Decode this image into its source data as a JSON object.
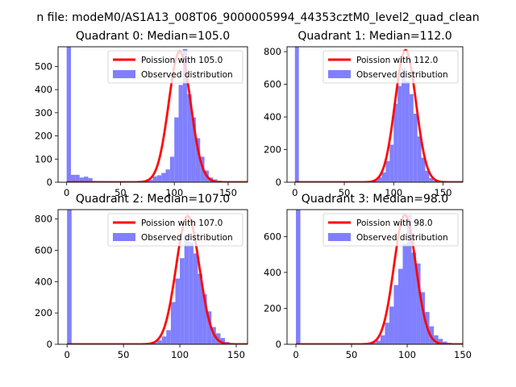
{
  "figure": {
    "suptitle": "n file: modeM0/AS1A13_008T06_9000005994_44353cztM0_level2_quad_clean"
  },
  "chart_data": [
    {
      "type": "bar",
      "title": "Quadrant 0: Median=105.0",
      "xlim": [
        -8,
        168
      ],
      "ylim": [
        0,
        585
      ],
      "xticks": [
        0,
        50,
        100,
        150
      ],
      "yticks": [
        0,
        100,
        200,
        300,
        400,
        500
      ],
      "series": [
        {
          "name": "Poission with 105.0",
          "kind": "line",
          "color": "#ff0000",
          "mean": 105.0,
          "peak": 565,
          "sigma": 10.2
        },
        {
          "name": "Observed distribution",
          "kind": "histogram",
          "color": "#8080ff",
          "bin_width": 4,
          "bins": [
            [
              0,
              585
            ],
            [
              4,
              32
            ],
            [
              8,
              32
            ],
            [
              12,
              20
            ],
            [
              16,
              24
            ],
            [
              20,
              18
            ],
            [
              24,
              5
            ],
            [
              28,
              4
            ],
            [
              32,
              4
            ],
            [
              36,
              3
            ],
            [
              40,
              3
            ],
            [
              44,
              3
            ],
            [
              48,
              3
            ],
            [
              52,
              3
            ],
            [
              56,
              3
            ],
            [
              60,
              3
            ],
            [
              64,
              4
            ],
            [
              68,
              4
            ],
            [
              72,
              5
            ],
            [
              76,
              10
            ],
            [
              80,
              25
            ],
            [
              84,
              30
            ],
            [
              88,
              40
            ],
            [
              92,
              55
            ],
            [
              96,
              110
            ],
            [
              100,
              280
            ],
            [
              104,
              420
            ],
            [
              108,
              575
            ],
            [
              112,
              380
            ],
            [
              116,
              280
            ],
            [
              120,
              190
            ],
            [
              124,
              110
            ],
            [
              128,
              50
            ],
            [
              132,
              20
            ],
            [
              136,
              12
            ],
            [
              140,
              6
            ],
            [
              144,
              4
            ],
            [
              148,
              3
            ],
            [
              152,
              2
            ],
            [
              156,
              1
            ]
          ]
        }
      ]
    },
    {
      "type": "bar",
      "title": "Quadrant 1: Median=112.0",
      "xlim": [
        -8,
        170
      ],
      "ylim": [
        0,
        830
      ],
      "xticks": [
        0,
        50,
        100,
        150
      ],
      "yticks": [
        0,
        200,
        400,
        600,
        800
      ],
      "series": [
        {
          "name": "Poission with 112.0",
          "kind": "line",
          "color": "#ff0000",
          "mean": 112.0,
          "peak": 810,
          "sigma": 10.6
        },
        {
          "name": "Observed distribution",
          "kind": "histogram",
          "color": "#8080ff",
          "bin_width": 4,
          "bins": [
            [
              0,
              830
            ],
            [
              4,
              3
            ],
            [
              8,
              3
            ],
            [
              12,
              3
            ],
            [
              16,
              3
            ],
            [
              20,
              3
            ],
            [
              24,
              3
            ],
            [
              28,
              3
            ],
            [
              32,
              3
            ],
            [
              36,
              3
            ],
            [
              40,
              3
            ],
            [
              44,
              3
            ],
            [
              48,
              3
            ],
            [
              52,
              3
            ],
            [
              56,
              3
            ],
            [
              60,
              3
            ],
            [
              64,
              3
            ],
            [
              68,
              4
            ],
            [
              72,
              5
            ],
            [
              76,
              8
            ],
            [
              80,
              15
            ],
            [
              84,
              30
            ],
            [
              88,
              60
            ],
            [
              92,
              130
            ],
            [
              96,
              230
            ],
            [
              100,
              480
            ],
            [
              104,
              590
            ],
            [
              108,
              700
            ],
            [
              112,
              620
            ],
            [
              116,
              540
            ],
            [
              120,
              420
            ],
            [
              124,
              280
            ],
            [
              128,
              150
            ],
            [
              132,
              70
            ],
            [
              136,
              25
            ],
            [
              140,
              12
            ],
            [
              144,
              6
            ],
            [
              148,
              3
            ],
            [
              152,
              2
            ],
            [
              156,
              1
            ]
          ]
        }
      ]
    },
    {
      "type": "bar",
      "title": "Quadrant 2: Median=107.0",
      "xlim": [
        -8,
        160
      ],
      "ylim": [
        0,
        860
      ],
      "xticks": [
        0,
        50,
        100,
        150
      ],
      "yticks": [
        0,
        200,
        400,
        600,
        800
      ],
      "series": [
        {
          "name": "Poission with 107.0",
          "kind": "line",
          "color": "#ff0000",
          "mean": 107.0,
          "peak": 820,
          "sigma": 10.3
        },
        {
          "name": "Observed distribution",
          "kind": "histogram",
          "color": "#8080ff",
          "bin_width": 4,
          "bins": [
            [
              0,
              860
            ],
            [
              4,
              3
            ],
            [
              8,
              3
            ],
            [
              12,
              3
            ],
            [
              16,
              3
            ],
            [
              20,
              3
            ],
            [
              24,
              3
            ],
            [
              28,
              3
            ],
            [
              32,
              3
            ],
            [
              36,
              3
            ],
            [
              40,
              3
            ],
            [
              44,
              3
            ],
            [
              48,
              3
            ],
            [
              52,
              3
            ],
            [
              56,
              3
            ],
            [
              60,
              3
            ],
            [
              64,
              4
            ],
            [
              68,
              5
            ],
            [
              72,
              8
            ],
            [
              76,
              12
            ],
            [
              80,
              25
            ],
            [
              84,
              50
            ],
            [
              88,
              90
            ],
            [
              92,
              270
            ],
            [
              96,
              420
            ],
            [
              100,
              550
            ],
            [
              104,
              700
            ],
            [
              108,
              650
            ],
            [
              112,
              580
            ],
            [
              116,
              450
            ],
            [
              120,
              320
            ],
            [
              124,
              210
            ],
            [
              128,
              110
            ],
            [
              132,
              70
            ],
            [
              136,
              40
            ],
            [
              140,
              15
            ],
            [
              144,
              8
            ],
            [
              148,
              4
            ],
            [
              152,
              2
            ]
          ]
        }
      ]
    },
    {
      "type": "bar",
      "title": "Quadrant 3: Median=98.0",
      "xlim": [
        -8,
        150
      ],
      "ylim": [
        0,
        750
      ],
      "xticks": [
        0,
        50,
        100,
        150
      ],
      "yticks": [
        0,
        200,
        400,
        600
      ],
      "series": [
        {
          "name": "Poission with 98.0",
          "kind": "line",
          "color": "#ff0000",
          "mean": 98.0,
          "peak": 720,
          "sigma": 9.9
        },
        {
          "name": "Observed distribution",
          "kind": "histogram",
          "color": "#8080ff",
          "bin_width": 4,
          "bins": [
            [
              0,
              750
            ],
            [
              4,
              3
            ],
            [
              8,
              3
            ],
            [
              12,
              3
            ],
            [
              16,
              3
            ],
            [
              20,
              3
            ],
            [
              24,
              3
            ],
            [
              28,
              3
            ],
            [
              32,
              3
            ],
            [
              36,
              3
            ],
            [
              40,
              3
            ],
            [
              44,
              3
            ],
            [
              48,
              3
            ],
            [
              52,
              3
            ],
            [
              56,
              3
            ],
            [
              60,
              3
            ],
            [
              64,
              5
            ],
            [
              68,
              10
            ],
            [
              72,
              20
            ],
            [
              76,
              50
            ],
            [
              80,
              120
            ],
            [
              84,
              210
            ],
            [
              88,
              330
            ],
            [
              92,
              420
            ],
            [
              96,
              560
            ],
            [
              100,
              720
            ],
            [
              104,
              510
            ],
            [
              108,
              450
            ],
            [
              112,
              290
            ],
            [
              116,
              180
            ],
            [
              120,
              100
            ],
            [
              124,
              50
            ],
            [
              128,
              30
            ],
            [
              132,
              15
            ],
            [
              136,
              8
            ],
            [
              140,
              3
            ]
          ]
        }
      ]
    }
  ]
}
